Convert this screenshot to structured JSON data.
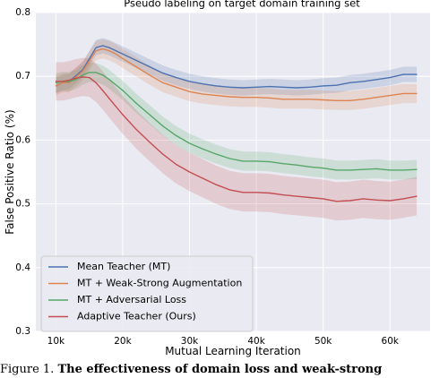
{
  "chart_data": {
    "type": "line",
    "title": "Pseudo labeling on target domain training set",
    "xlabel": "Mutual Learning Iteration",
    "ylabel": "False Positive Ratio (%)",
    "xlim": [
      7000,
      66000
    ],
    "ylim": [
      0.3,
      0.8
    ],
    "xticks": [
      10000,
      20000,
      30000,
      40000,
      50000,
      60000
    ],
    "xtick_labels": [
      "10k",
      "20k",
      "30k",
      "40k",
      "50k",
      "60k"
    ],
    "yticks": [
      0.3,
      0.4,
      0.5,
      0.6,
      0.7,
      0.8
    ],
    "ytick_labels": [
      "0.3",
      "0.4",
      "0.5",
      "0.6",
      "0.7",
      "0.8"
    ],
    "grid": true,
    "legend_position": "bottom-left",
    "series": [
      {
        "name": "Mean Teacher (MT)",
        "color": "#4c72b0",
        "band": 0.012,
        "x": [
          10000,
          11000,
          12000,
          14000,
          16000,
          17000,
          18000,
          19000,
          20000,
          22000,
          24000,
          26000,
          28000,
          30000,
          32000,
          34000,
          36000,
          38000,
          40000,
          42000,
          44000,
          46000,
          48000,
          50000,
          52000,
          54000,
          56000,
          58000,
          60000,
          62000,
          64000
        ],
        "values": [
          0.685,
          0.69,
          0.692,
          0.71,
          0.745,
          0.748,
          0.745,
          0.74,
          0.735,
          0.725,
          0.715,
          0.705,
          0.698,
          0.692,
          0.688,
          0.685,
          0.683,
          0.682,
          0.683,
          0.684,
          0.683,
          0.682,
          0.683,
          0.685,
          0.686,
          0.69,
          0.692,
          0.695,
          0.698,
          0.703,
          0.703
        ]
      },
      {
        "name": "MT + Weak-Strong Augmentation",
        "color": "#dd8452",
        "band": 0.015,
        "x": [
          10000,
          11000,
          12000,
          14000,
          16000,
          17000,
          18000,
          19000,
          20000,
          22000,
          24000,
          26000,
          28000,
          30000,
          32000,
          34000,
          36000,
          38000,
          40000,
          42000,
          44000,
          46000,
          48000,
          50000,
          52000,
          54000,
          56000,
          58000,
          60000,
          62000,
          64000
        ],
        "values": [
          0.685,
          0.69,
          0.69,
          0.708,
          0.74,
          0.743,
          0.74,
          0.735,
          0.728,
          0.715,
          0.702,
          0.69,
          0.683,
          0.676,
          0.672,
          0.67,
          0.668,
          0.667,
          0.667,
          0.666,
          0.664,
          0.664,
          0.664,
          0.663,
          0.662,
          0.662,
          0.664,
          0.667,
          0.67,
          0.673,
          0.673
        ]
      },
      {
        "name": "MT + Adversarial Loss",
        "color": "#55a868",
        "band": 0.015,
        "x": [
          10000,
          11000,
          12000,
          13000,
          14000,
          15000,
          16000,
          17000,
          18000,
          20000,
          22000,
          24000,
          26000,
          28000,
          30000,
          32000,
          34000,
          36000,
          38000,
          40000,
          42000,
          44000,
          46000,
          48000,
          50000,
          52000,
          54000,
          56000,
          58000,
          60000,
          62000,
          64000
        ],
        "values": [
          0.69,
          0.692,
          0.692,
          0.695,
          0.702,
          0.706,
          0.706,
          0.702,
          0.695,
          0.678,
          0.658,
          0.64,
          0.622,
          0.607,
          0.595,
          0.586,
          0.578,
          0.571,
          0.567,
          0.567,
          0.566,
          0.563,
          0.561,
          0.558,
          0.556,
          0.553,
          0.553,
          0.554,
          0.555,
          0.553,
          0.553,
          0.554
        ]
      },
      {
        "name": "Adaptive Teacher (Ours)",
        "color": "#c44e52",
        "band": 0.03,
        "x": [
          10000,
          11000,
          12000,
          13000,
          14000,
          15000,
          16000,
          17000,
          18000,
          20000,
          22000,
          24000,
          26000,
          28000,
          30000,
          32000,
          34000,
          36000,
          38000,
          40000,
          42000,
          44000,
          46000,
          48000,
          50000,
          52000,
          54000,
          56000,
          58000,
          60000,
          62000,
          64000
        ],
        "values": [
          0.692,
          0.692,
          0.694,
          0.697,
          0.699,
          0.698,
          0.69,
          0.678,
          0.665,
          0.64,
          0.617,
          0.597,
          0.578,
          0.562,
          0.55,
          0.54,
          0.53,
          0.522,
          0.518,
          0.518,
          0.517,
          0.514,
          0.512,
          0.51,
          0.508,
          0.504,
          0.505,
          0.508,
          0.506,
          0.505,
          0.508,
          0.512
        ]
      }
    ]
  },
  "caption": {
    "label": "Figure 1.",
    "bold_text": "The effectiveness of domain loss and weak-strong"
  }
}
